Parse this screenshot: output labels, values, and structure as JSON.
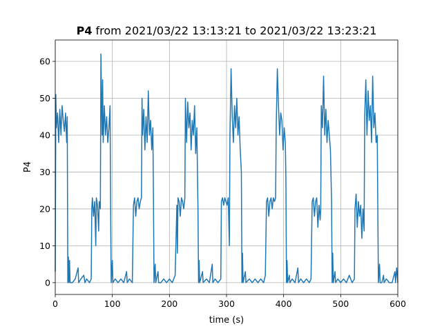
{
  "chart_data": {
    "type": "line",
    "title_bold": "P4",
    "title": "from 2021/03/22 13:13:21 to 2021/03/22 13:23:21",
    "xlabel": "time (s)",
    "ylabel": "P4",
    "color": "#1f77b4",
    "grid": true,
    "xlim": [
      0,
      600
    ],
    "xticks": [
      0,
      100,
      200,
      300,
      400,
      500,
      600
    ],
    "ylim": [
      -3.2,
      65.8
    ],
    "yticks": [
      0,
      10,
      20,
      30,
      40,
      50,
      60
    ],
    "x": [
      0,
      1,
      2,
      4,
      6,
      8,
      10,
      12,
      14,
      16,
      18,
      20,
      21,
      22,
      23,
      24,
      25,
      26,
      30,
      35,
      40,
      41,
      45,
      50,
      52,
      55,
      60,
      63,
      64,
      65,
      67,
      69,
      71,
      72,
      74,
      76,
      77,
      79,
      80,
      81,
      82,
      83,
      84,
      86,
      88,
      90,
      92,
      94,
      96,
      97,
      98,
      100,
      101,
      105,
      110,
      115,
      120,
      125,
      126,
      130,
      135,
      137,
      139,
      141,
      143,
      145,
      147,
      149,
      151,
      152,
      153,
      155,
      157,
      159,
      161,
      163,
      165,
      167,
      169,
      171,
      172,
      173,
      175,
      176,
      180,
      181,
      185,
      190,
      195,
      200,
      205,
      210,
      213,
      214,
      215,
      217,
      219,
      221,
      223,
      225,
      227,
      228,
      230,
      232,
      234,
      236,
      238,
      240,
      242,
      244,
      246,
      248,
      250,
      251,
      252,
      253,
      258,
      259,
      265,
      270,
      275,
      276,
      280,
      285,
      290,
      291,
      293,
      295,
      297,
      299,
      301,
      303,
      305,
      306,
      308,
      310,
      312,
      314,
      316,
      318,
      320,
      322,
      324,
      326,
      327,
      328,
      329,
      333,
      334,
      340,
      345,
      350,
      355,
      360,
      365,
      368,
      370,
      372,
      374,
      376,
      378,
      380,
      382,
      384,
      386,
      387,
      389,
      391,
      393,
      395,
      397,
      399,
      401,
      403,
      404,
      405,
      406,
      407,
      410,
      411,
      415,
      420,
      425,
      426,
      430,
      435,
      440,
      445,
      448,
      450,
      452,
      454,
      456,
      458,
      460,
      462,
      464,
      465,
      466,
      468,
      470,
      472,
      474,
      476,
      478,
      480,
      482,
      484,
      485,
      486,
      487,
      490,
      491,
      495,
      500,
      505,
      510,
      515,
      520,
      524,
      525,
      527,
      529,
      531,
      533,
      535,
      537,
      539,
      541,
      542,
      544,
      546,
      548,
      550,
      552,
      554,
      556,
      558,
      560,
      562,
      564,
      566,
      568,
      569,
      572,
      575,
      576,
      580,
      585,
      590,
      595,
      596,
      598,
      600
    ],
    "values": [
      3,
      51,
      42,
      46,
      38,
      47,
      40,
      48,
      44,
      41,
      46,
      38,
      45,
      0,
      7,
      0,
      6,
      0,
      0,
      1,
      4,
      0,
      1,
      2,
      0,
      1,
      0,
      1,
      20,
      23,
      18,
      22,
      10,
      23,
      21,
      14,
      22,
      20,
      62,
      50,
      40,
      55,
      38,
      48,
      40,
      45,
      38,
      42,
      48,
      20,
      0,
      6,
      0,
      1,
      0,
      1,
      0,
      3,
      0,
      1,
      0,
      21,
      23,
      18,
      22,
      23,
      20,
      22,
      23,
      50,
      40,
      47,
      36,
      45,
      38,
      52,
      40,
      44,
      36,
      42,
      23,
      0,
      5,
      0,
      3,
      0,
      0,
      1,
      0,
      1,
      0,
      2,
      21,
      8,
      23,
      22,
      18,
      23,
      22,
      20,
      23,
      50,
      38,
      49,
      42,
      46,
      36,
      44,
      40,
      48,
      35,
      42,
      20,
      0,
      6,
      0,
      3,
      0,
      1,
      0,
      5,
      0,
      1,
      0,
      1,
      22,
      23,
      21,
      23,
      22,
      21,
      23,
      10,
      40,
      58,
      45,
      38,
      48,
      42,
      50,
      40,
      45,
      36,
      30,
      0,
      8,
      0,
      3,
      0,
      1,
      0,
      1,
      0,
      1,
      0,
      2,
      22,
      23,
      18,
      22,
      23,
      20,
      23,
      22,
      23,
      42,
      58,
      48,
      40,
      46,
      44,
      36,
      42,
      38,
      28,
      0,
      6,
      0,
      2,
      0,
      1,
      0,
      4,
      0,
      1,
      0,
      1,
      0,
      1,
      22,
      23,
      18,
      22,
      23,
      15,
      21,
      17,
      20,
      48,
      42,
      56,
      40,
      47,
      38,
      44,
      40,
      36,
      22,
      0,
      8,
      0,
      3,
      0,
      1,
      0,
      1,
      0,
      2,
      0,
      1,
      20,
      24,
      15,
      22,
      18,
      21,
      12,
      20,
      14,
      45,
      55,
      40,
      52,
      44,
      48,
      38,
      56,
      42,
      46,
      38,
      40,
      0,
      5,
      0,
      0,
      2,
      0,
      1,
      0,
      0,
      3,
      0,
      4,
      0
    ]
  }
}
